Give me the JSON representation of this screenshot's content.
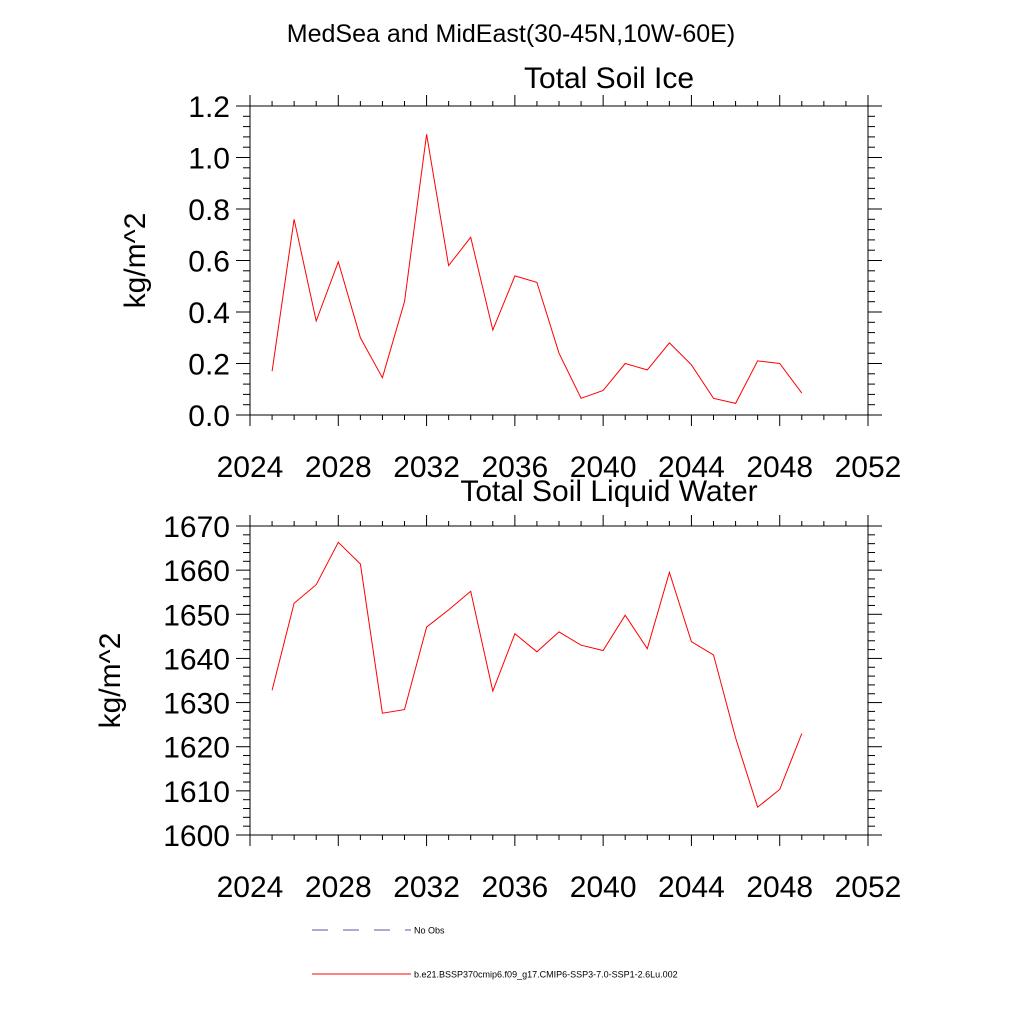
{
  "figure": {
    "suptitle": "MedSea and MidEast(30-45N,10W-60E)"
  },
  "chart_data": [
    {
      "type": "line",
      "title": "Total Soil Ice",
      "xlabel": "",
      "ylabel": "kg/m^2",
      "xlim": [
        2024,
        2052
      ],
      "ylim": [
        0,
        1.2
      ],
      "xticks": [
        2024,
        2028,
        2032,
        2036,
        2040,
        2044,
        2048,
        2052
      ],
      "yticks": [
        0,
        0.2,
        0.4,
        0.6,
        0.8,
        1.0,
        1.2
      ],
      "ytick_labels": [
        "0.0",
        "0.2",
        "0.4",
        "0.6",
        "0.8",
        "1.0",
        "1.2"
      ],
      "x": [
        2025,
        2026,
        2027,
        2028,
        2029,
        2030,
        2031,
        2032,
        2033,
        2034,
        2035,
        2036,
        2037,
        2038,
        2039,
        2040,
        2041,
        2042,
        2043,
        2044,
        2045,
        2046,
        2047,
        2048,
        2049
      ],
      "series": [
        {
          "color": "#ff0000",
          "values": [
            0.17,
            0.76,
            0.365,
            0.595,
            0.3,
            0.145,
            0.44,
            1.09,
            0.58,
            0.69,
            0.33,
            0.54,
            0.515,
            0.24,
            0.065,
            0.095,
            0.2,
            0.175,
            0.28,
            0.195,
            0.065,
            0.045,
            0.21,
            0.2,
            0.085
          ]
        }
      ]
    },
    {
      "type": "line",
      "title": "Total Soil Liquid Water",
      "xlabel": "",
      "ylabel": "kg/m^2",
      "xlim": [
        2024,
        2052
      ],
      "ylim": [
        1600,
        1670
      ],
      "xticks": [
        2024,
        2028,
        2032,
        2036,
        2040,
        2044,
        2048,
        2052
      ],
      "yticks": [
        1600,
        1610,
        1620,
        1630,
        1640,
        1650,
        1660,
        1670
      ],
      "ytick_labels": [
        "1600",
        "1610",
        "1620",
        "1630",
        "1640",
        "1650",
        "1660",
        "1670"
      ],
      "x": [
        2025,
        2026,
        2027,
        2028,
        2029,
        2030,
        2031,
        2032,
        2033,
        2034,
        2035,
        2036,
        2037,
        2038,
        2039,
        2040,
        2041,
        2042,
        2043,
        2044,
        2045,
        2046,
        2047,
        2048,
        2049
      ],
      "series": [
        {
          "color": "#ff0000",
          "values": [
            1632.8,
            1652.5,
            1656.7,
            1666.3,
            1661.4,
            1627.6,
            1628.4,
            1647.1,
            1651.0,
            1655.2,
            1632.6,
            1645.6,
            1641.5,
            1646.0,
            1643.0,
            1641.8,
            1649.8,
            1642.2,
            1659.5,
            1643.8,
            1640.8,
            1622.0,
            1606.3,
            1610.3,
            1623.0
          ]
        }
      ]
    }
  ],
  "legend": {
    "entries": [
      {
        "label": "No Obs",
        "color": "#5a5a9a",
        "dashed": true
      },
      {
        "label": "b.e21.BSSP370cmip6.f09_g17.CMIP6-SSP3-7.0-SSP1-2.6Lu.002",
        "color": "#ff0000",
        "dashed": false
      }
    ]
  }
}
